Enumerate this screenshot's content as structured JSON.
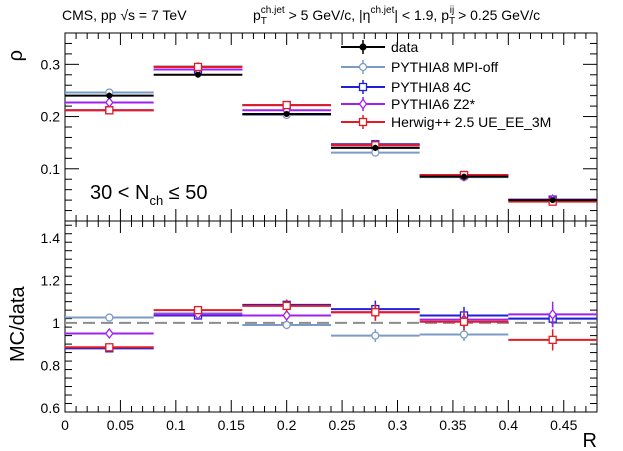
{
  "header": {
    "left": "CMS, pp √s = 7 TeV",
    "right": "p_T^{ch.jet} > 5 GeV/c, |η^{ch.jet}| < 1.9, p_T^{ij} > 0.25 GeV/c",
    "right_parts": {
      "p": "p",
      "T": "T",
      "chjet": "ch.jet",
      "gt5": " > 5 GeV/c, |η",
      "chjet2": "ch.jet",
      "lt19": "| < 1.9, p",
      "T2": "T",
      "ij": "ij",
      "gt025": " > 0.25 GeV/c"
    }
  },
  "annotation": {
    "prefix": "30 < N",
    "sub": "ch",
    "suffix": " ≤ 50"
  },
  "legend": [
    {
      "key": "data",
      "label": "data"
    },
    {
      "key": "py8off",
      "label": "PYTHIA8 MPI-off"
    },
    {
      "key": "py84c",
      "label": "PYTHIA8 4C"
    },
    {
      "key": "py6",
      "label": "PYTHIA6 Z2*"
    },
    {
      "key": "herwig",
      "label": "Herwig++ 2.5  UE_EE_3M"
    }
  ],
  "series_colors": {
    "data": "#000000",
    "py8off": "#7b9bc6",
    "py84c": "#1f1fd6",
    "py6": "#a020f0",
    "herwig": "#e51b24",
    "ratio_line": "#8c8c8c"
  },
  "chart_data": [
    {
      "type": "line",
      "panel": "top",
      "ylabel": "ρ",
      "ylim": [
        0,
        0.36
      ],
      "xlim": [
        0,
        0.48
      ],
      "yticks": [
        0.1,
        0.2,
        0.3
      ],
      "ytick_labels": [
        "0.1",
        "0.2",
        "0.3"
      ],
      "bin_edges": [
        0,
        0.08,
        0.16,
        0.24,
        0.32,
        0.4,
        0.48
      ],
      "series": [
        {
          "key": "data",
          "name": "data",
          "values": [
            0.24,
            0.28,
            0.205,
            0.14,
            0.085,
            0.04
          ],
          "errors": [
            0.006,
            0.004,
            0.003,
            0.006,
            0.003,
            0.003
          ]
        },
        {
          "key": "py8off",
          "name": "PYTHIA8 MPI-off",
          "values": [
            0.246,
            0.296,
            0.203,
            0.131,
            0.084,
            0.041
          ],
          "errors": [
            0.003,
            0.003,
            0.003,
            0.003,
            0.003,
            0.002
          ]
        },
        {
          "key": "py84c",
          "name": "PYTHIA8 4C",
          "values": [
            0.212,
            0.29,
            0.222,
            0.147,
            0.088,
            0.041
          ],
          "errors": [
            0.003,
            0.003,
            0.003,
            0.003,
            0.003,
            0.002
          ]
        },
        {
          "key": "py6",
          "name": "PYTHIA6 Z2*",
          "values": [
            0.227,
            0.29,
            0.212,
            0.145,
            0.086,
            0.041
          ],
          "errors": [
            0.003,
            0.003,
            0.003,
            0.003,
            0.003,
            0.002
          ]
        },
        {
          "key": "herwig",
          "name": "Herwig++ 2.5  UE_EE_3M",
          "values": [
            0.212,
            0.295,
            0.222,
            0.145,
            0.088,
            0.037
          ],
          "errors": [
            0.003,
            0.003,
            0.003,
            0.003,
            0.003,
            0.002
          ]
        }
      ]
    },
    {
      "type": "line",
      "panel": "bottom",
      "xlabel": "R",
      "ylabel": "MC/data",
      "ylim": [
        0.58,
        1.48
      ],
      "xlim": [
        0,
        0.48
      ],
      "yticks": [
        0.6,
        0.8,
        1.0,
        1.2,
        1.4
      ],
      "ytick_labels": [
        "0.6",
        "0.8",
        "1",
        "1.2",
        "1.4"
      ],
      "xticks": [
        0,
        0.05,
        0.1,
        0.15,
        0.2,
        0.25,
        0.3,
        0.35,
        0.4,
        0.45
      ],
      "xtick_labels": [
        "0",
        "0.05",
        "0.1",
        "0.15",
        "0.2",
        "0.25",
        "0.3",
        "0.35",
        "0.4",
        "0.45"
      ],
      "reference_line": 1.0,
      "bin_edges": [
        0,
        0.08,
        0.16,
        0.24,
        0.32,
        0.4,
        0.48
      ],
      "series": [
        {
          "key": "py8off",
          "name": "PYTHIA8 MPI-off",
          "values": [
            1.025,
            1.045,
            0.99,
            0.94,
            0.945,
            1.02
          ],
          "errors": [
            0.015,
            0.02,
            0.02,
            0.03,
            0.03,
            0.04
          ]
        },
        {
          "key": "py84c",
          "name": "PYTHIA8 4C",
          "values": [
            0.88,
            1.035,
            1.085,
            1.065,
            1.035,
            1.02
          ],
          "errors": [
            0.015,
            0.02,
            0.025,
            0.04,
            0.04,
            0.04
          ]
        },
        {
          "key": "py6",
          "name": "PYTHIA6 Z2*",
          "values": [
            0.95,
            1.04,
            1.035,
            1.05,
            1.015,
            1.04
          ],
          "errors": [
            0.015,
            0.02,
            0.025,
            0.04,
            0.04,
            0.06
          ]
        },
        {
          "key": "herwig",
          "name": "Herwig++ 2.5  UE_EE_3M",
          "values": [
            0.885,
            1.06,
            1.08,
            1.05,
            1.005,
            0.92
          ],
          "errors": [
            0.015,
            0.02,
            0.03,
            0.04,
            0.04,
            0.05
          ]
        }
      ]
    }
  ]
}
